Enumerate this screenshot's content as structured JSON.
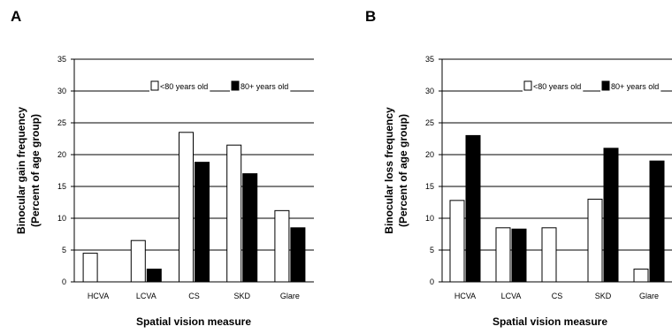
{
  "chart_data": [
    {
      "panel": "A",
      "type": "bar",
      "categories": [
        "HCVA",
        "LCVA",
        "CS",
        "SKD",
        "Glare"
      ],
      "series": [
        {
          "name": "<80 years old",
          "color": "#ffffff",
          "values": [
            4.5,
            6.5,
            23.5,
            21.5,
            11.2
          ]
        },
        {
          "name": "80+ years old",
          "color": "#000000",
          "values": [
            0,
            2.0,
            18.8,
            17.0,
            8.5
          ]
        }
      ],
      "ylabel_line1": "Binocular gain frequency",
      "ylabel_line2": "(Percent of age group)",
      "xlabel": "Spatial vision measure",
      "ylim": [
        0,
        35
      ],
      "yticks": [
        "0",
        "5",
        "10",
        "15",
        "20",
        "25",
        "30",
        "35"
      ],
      "grid": true,
      "legend_placement": "top-center"
    },
    {
      "panel": "B",
      "type": "bar",
      "categories": [
        "HCVA",
        "LCVA",
        "CS",
        "SKD",
        "Glare"
      ],
      "series": [
        {
          "name": "<80 years old",
          "color": "#ffffff",
          "values": [
            12.8,
            8.5,
            8.5,
            13.0,
            2.0
          ]
        },
        {
          "name": "80+ years old",
          "color": "#000000",
          "values": [
            23.0,
            8.3,
            0,
            21.0,
            19.0
          ]
        }
      ],
      "ylabel_line1": "Binocular loss frequency",
      "ylabel_line2": "(Percent of age group)",
      "xlabel": "Spatial vision measure",
      "ylim": [
        0,
        35
      ],
      "yticks": [
        "0",
        "5",
        "10",
        "15",
        "20",
        "25",
        "30",
        "35"
      ],
      "grid": true,
      "legend_placement": "top-right"
    }
  ]
}
